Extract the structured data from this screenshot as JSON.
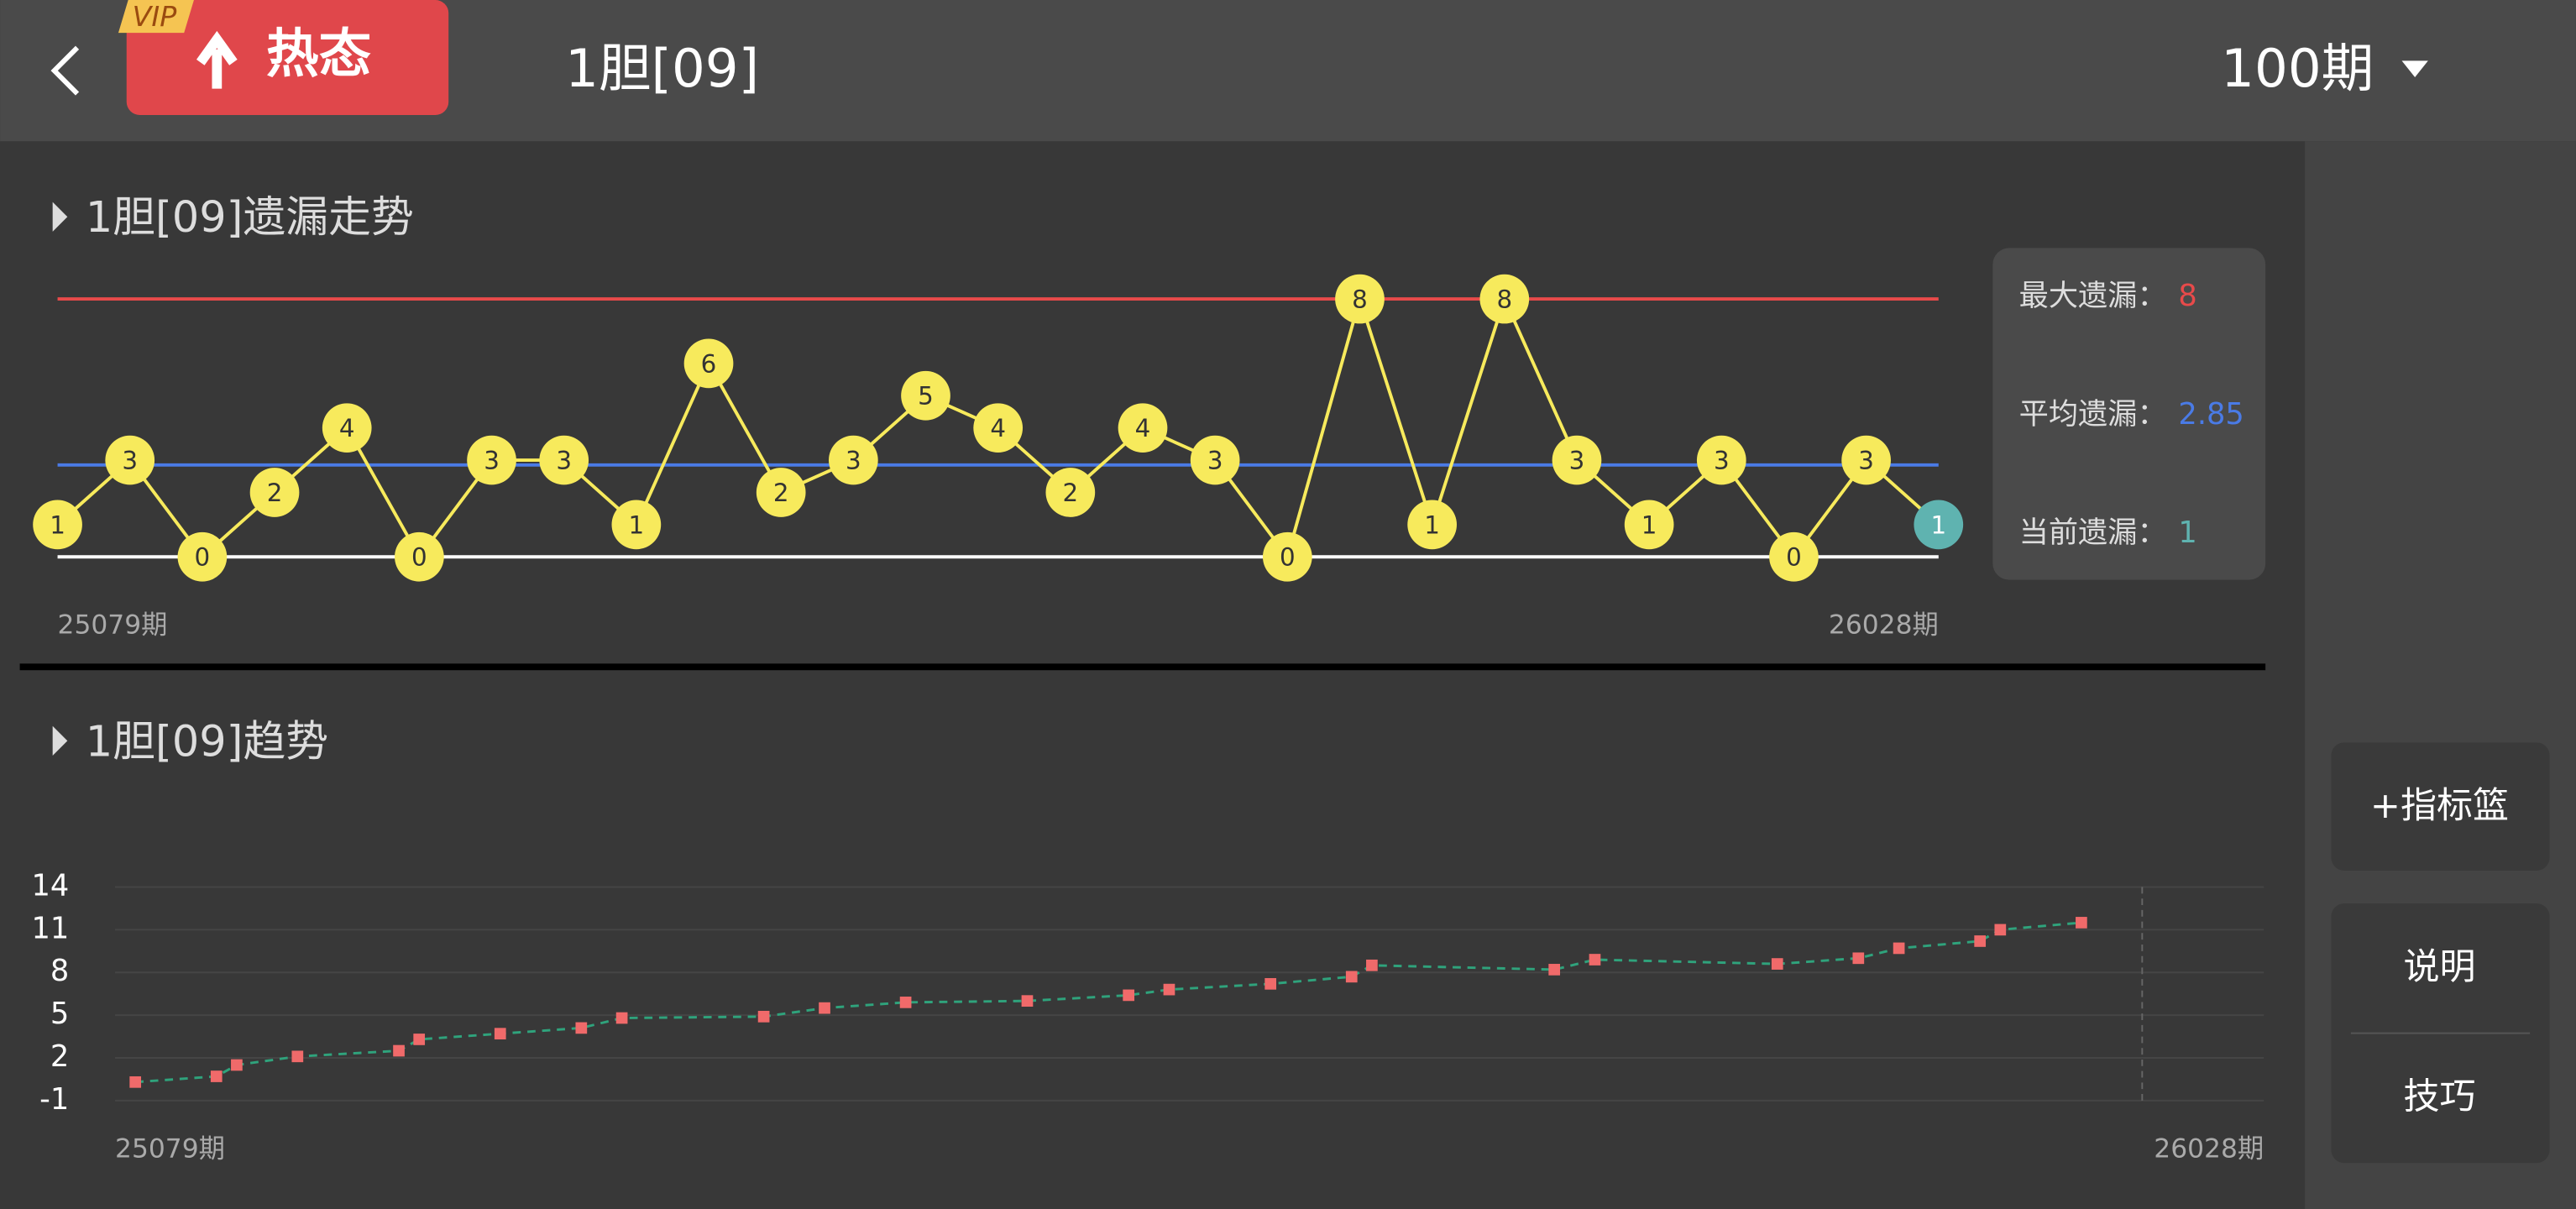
{
  "header": {
    "vip": "VIP",
    "badge": "热态",
    "title": "1胆[09]",
    "period": "100期"
  },
  "sidebar": {
    "buttons": [
      "+指标篮",
      "说明",
      "技巧"
    ]
  },
  "chart_data": [
    {
      "type": "miss",
      "title": "1胆[09]遗漏走势",
      "categories": [
        "25079期",
        null,
        null,
        null,
        null,
        null,
        null,
        null,
        null,
        null,
        null,
        null,
        null,
        null,
        null,
        null,
        null,
        null,
        null,
        null,
        null,
        null,
        null,
        null,
        null,
        null,
        "26028期"
      ],
      "values": [
        1,
        3,
        0,
        2,
        4,
        0,
        3,
        3,
        1,
        6,
        2,
        3,
        5,
        4,
        2,
        4,
        3,
        0,
        8,
        1,
        8,
        3,
        1,
        3,
        0,
        3,
        1
      ],
      "color": "#f7ea5c",
      "highlight_color": "#5fb3b0",
      "ylim": [
        0,
        8
      ],
      "stats": [
        {
          "label": "最大遗漏：",
          "value": 8,
          "color": "#e84a4a"
        },
        {
          "label": "平均遗漏：",
          "value": 2.85,
          "color": "#4a7be6"
        },
        {
          "label": "当前遗漏：",
          "value": 1,
          "color": "#5fb3b0"
        }
      ]
    },
    {
      "type": "trend",
      "title": "1胆[09]趋势",
      "x": [
        1,
        5,
        6,
        9,
        14,
        15,
        19,
        23,
        25,
        32,
        35,
        39,
        45,
        50,
        52,
        57,
        61,
        62,
        71,
        73,
        82,
        86,
        88,
        92,
        93,
        97
      ],
      "values": [
        0.3,
        0.7,
        1.5,
        2.1,
        2.5,
        3.3,
        3.7,
        4.1,
        4.8,
        4.9,
        5.5,
        5.9,
        6.0,
        6.4,
        6.8,
        7.2,
        7.7,
        8.5,
        8.2,
        8.9,
        8.6,
        9.0,
        9.7,
        10.2,
        11.0,
        11.5
      ],
      "color": "#f06a6a",
      "line_color": "#2fa37c",
      "xlim": [
        0,
        106
      ],
      "xticks": [
        {
          "value": 0,
          "label": "25079期"
        },
        {
          "value": 100,
          "label": "26028期"
        }
      ],
      "ylim": [
        -1,
        14
      ],
      "yticks": [
        14,
        11,
        8,
        5,
        2,
        -1
      ],
      "grid": true
    }
  ]
}
